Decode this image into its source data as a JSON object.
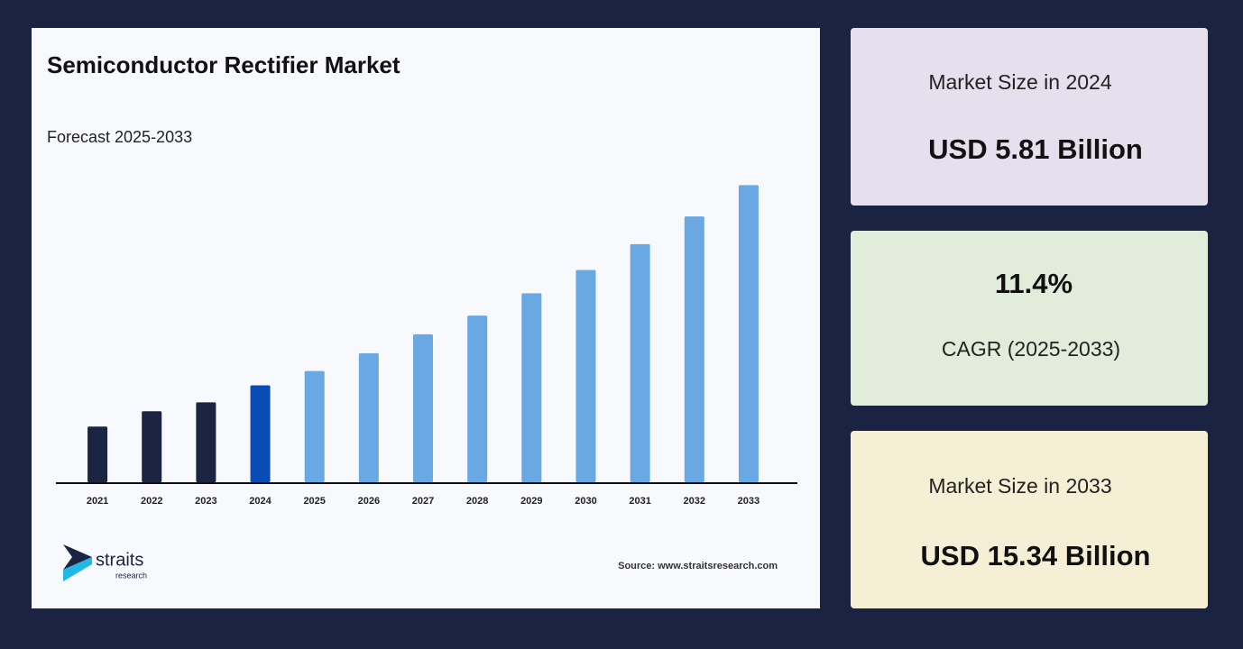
{
  "chart_data": {
    "type": "bar",
    "title": "Semiconductor Rectifier Market",
    "subtitle": "Forecast 2025-2033",
    "categories": [
      "2021",
      "2022",
      "2023",
      "2024",
      "2025",
      "2026",
      "2027",
      "2028",
      "2029",
      "2030",
      "2031",
      "2032",
      "2033"
    ],
    "values": [
      3.85,
      4.58,
      5.0,
      5.81,
      6.49,
      7.34,
      8.24,
      9.13,
      10.19,
      11.3,
      12.53,
      13.85,
      15.34
    ],
    "colors": [
      "#1b2440",
      "#1b2440",
      "#1b2440",
      "#0a4bb5",
      "#6aa8e4",
      "#6aa8e4",
      "#6aa8e4",
      "#6aa8e4",
      "#6aa8e4",
      "#6aa8e4",
      "#6aa8e4",
      "#6aa8e4",
      "#6aa8e4"
    ],
    "ylim": [
      1.2,
      16
    ]
  },
  "cards": [
    {
      "label": "Market Size in 2024",
      "value": "USD 5.81 Billion"
    },
    {
      "value": "11.4%",
      "label": "CAGR (2025-2033)"
    },
    {
      "label": "Market Size in 2033",
      "value": "USD 15.34 Billion"
    }
  ],
  "logo": {
    "name": "straits",
    "tagline": "research"
  },
  "source": "Source: www.straitsresearch.com"
}
